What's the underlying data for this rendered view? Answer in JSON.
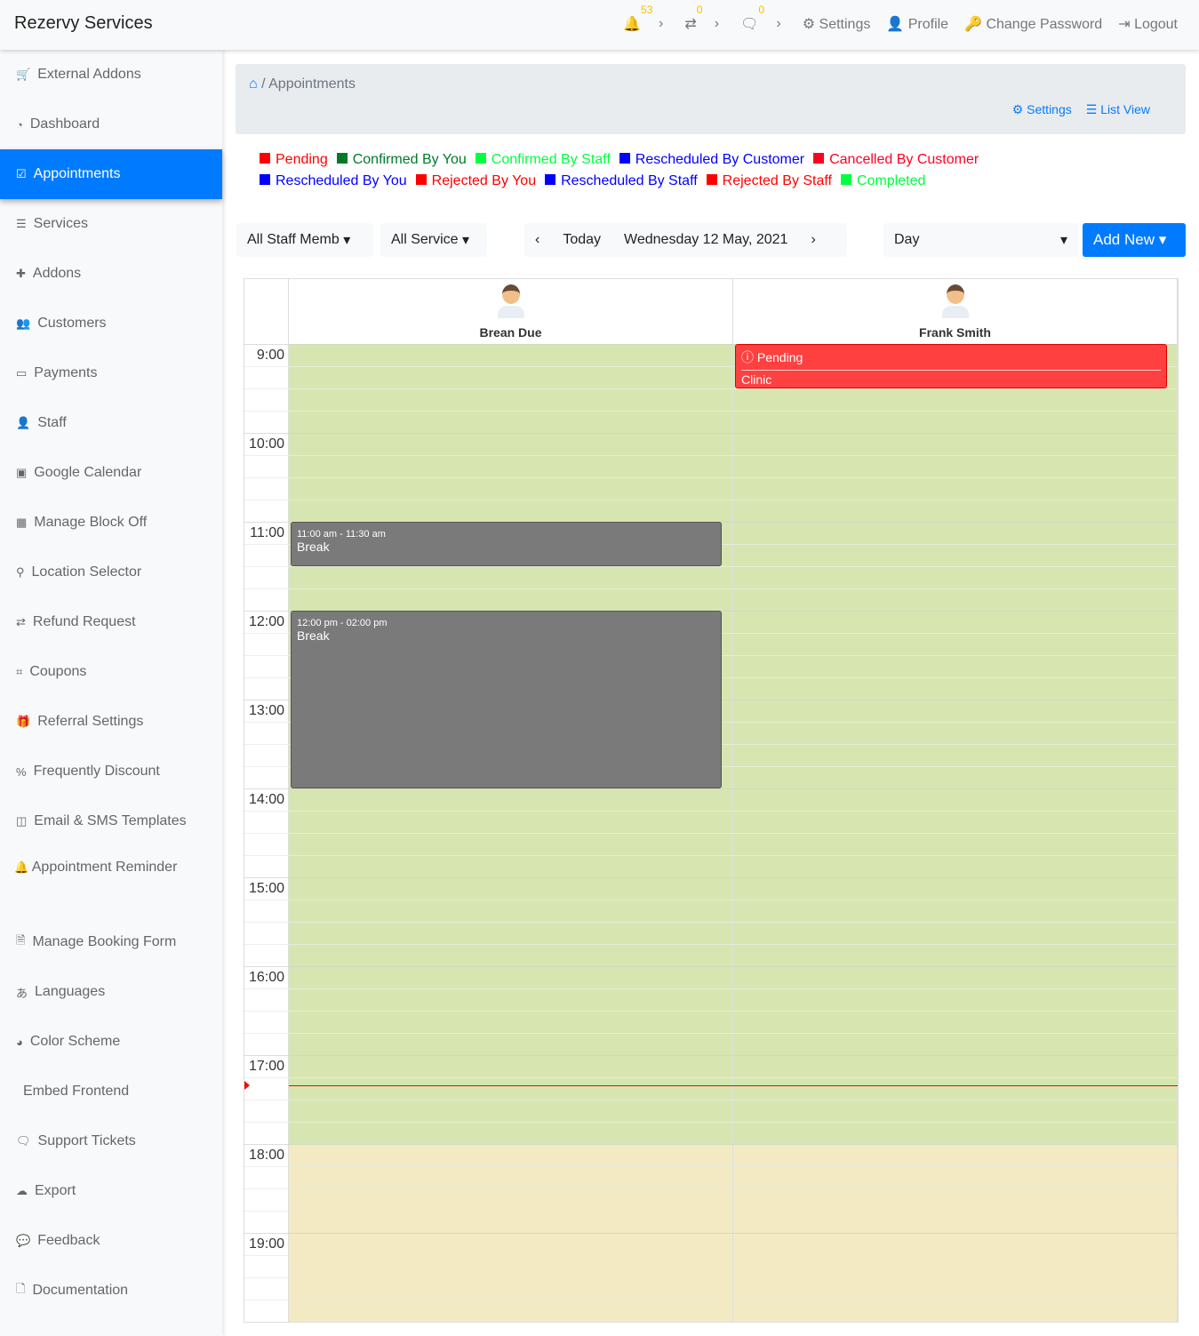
{
  "header": {
    "brand": "Rezervy Services",
    "notifications": "53",
    "transfers": "0",
    "messages": "0",
    "settings": "Settings",
    "profile": "Profile",
    "change_password": "Change Password",
    "logout": "Logout"
  },
  "sidebar": {
    "items": [
      {
        "label": "External Addons",
        "icon": "cart-icon"
      },
      {
        "label": "Dashboard",
        "icon": "dashboard-icon"
      },
      {
        "label": "Appointments",
        "icon": "calendar-check-icon",
        "active": true
      },
      {
        "label": "Services",
        "icon": "list-icon"
      },
      {
        "label": "Addons",
        "icon": "puzzle-icon"
      },
      {
        "label": "Customers",
        "icon": "users-icon"
      },
      {
        "label": "Payments",
        "icon": "money-icon"
      },
      {
        "label": "Staff",
        "icon": "user-icon"
      },
      {
        "label": "Google Calendar",
        "icon": "calendar-plus-icon"
      },
      {
        "label": "Manage Block Off",
        "icon": "calendar-icon"
      },
      {
        "label": "Location Selector",
        "icon": "map-marker-icon"
      },
      {
        "label": "Refund Request",
        "icon": "exchange-icon"
      },
      {
        "label": "Coupons",
        "icon": "tag-icon"
      },
      {
        "label": "Referral Settings",
        "icon": "gift-icon"
      },
      {
        "label": "Frequently Discount",
        "icon": "percent-icon"
      },
      {
        "label": "Email & SMS Templates",
        "icon": "columns-icon"
      },
      {
        "label": "Appointment Reminder",
        "icon": "bell-icon"
      },
      {
        "label": "Manage Booking Form",
        "icon": "file-icon"
      },
      {
        "label": "Languages",
        "icon": "language-icon"
      },
      {
        "label": "Color Scheme",
        "icon": "palette-icon"
      },
      {
        "label": "Embed Frontend",
        "icon": "code-icon"
      },
      {
        "label": "Support Tickets",
        "icon": "comments-icon"
      },
      {
        "label": "Export",
        "icon": "cloud-upload-icon"
      },
      {
        "label": "Feedback",
        "icon": "comment-icon"
      },
      {
        "label": "Documentation",
        "icon": "document-icon"
      }
    ]
  },
  "breadcrumb": {
    "current": "Appointments",
    "settings": "Settings",
    "list_view": "List View"
  },
  "legend": [
    {
      "label": "Pending",
      "color": "#ff0000"
    },
    {
      "label": "Confirmed By You",
      "color": "#007a2a"
    },
    {
      "label": "Confirmed By Staff",
      "color": "#00ff40"
    },
    {
      "label": "Rescheduled By Customer",
      "color": "#0000ff"
    },
    {
      "label": "Cancelled By Customer",
      "color": "#ff0022"
    },
    {
      "label": "Rescheduled By You",
      "color": "#0000ff"
    },
    {
      "label": "Rejected By You",
      "color": "#ff0000"
    },
    {
      "label": "Rescheduled By Staff",
      "color": "#0000ff"
    },
    {
      "label": "Rejected By Staff",
      "color": "#ff0000"
    },
    {
      "label": "Completed",
      "color": "#00ff40"
    }
  ],
  "controls": {
    "staff": "All Staff Memb",
    "service": "All Service",
    "today": "Today",
    "date": "Wednesday 12 May, 2021",
    "view": "Day",
    "add_new": "Add New"
  },
  "calendar": {
    "staff": [
      "Brean Due",
      "Frank Smith"
    ],
    "hours": [
      "9:00",
      "10:00",
      "11:00",
      "12:00",
      "13:00",
      "14:00",
      "15:00",
      "16:00",
      "17:00",
      "18:00",
      "19:00"
    ],
    "events": [
      {
        "staff": 1,
        "start": 9,
        "end": 9.5,
        "status": "Pending",
        "service": "Clinic",
        "color": "#ff4040"
      },
      {
        "staff": 0,
        "start": 11,
        "end": 11.5,
        "time": "11:00 am - 11:30 am",
        "title": "Break",
        "color": "#7a7a7a"
      },
      {
        "staff": 0,
        "start": 12,
        "end": 14,
        "time": "12:00 pm - 02:00 pm",
        "title": "Break",
        "color": "#7a7a7a"
      }
    ],
    "working_until": 18,
    "now": 17.34,
    "working_color": "#d7e6b0",
    "off_color": "#f3eac4"
  }
}
